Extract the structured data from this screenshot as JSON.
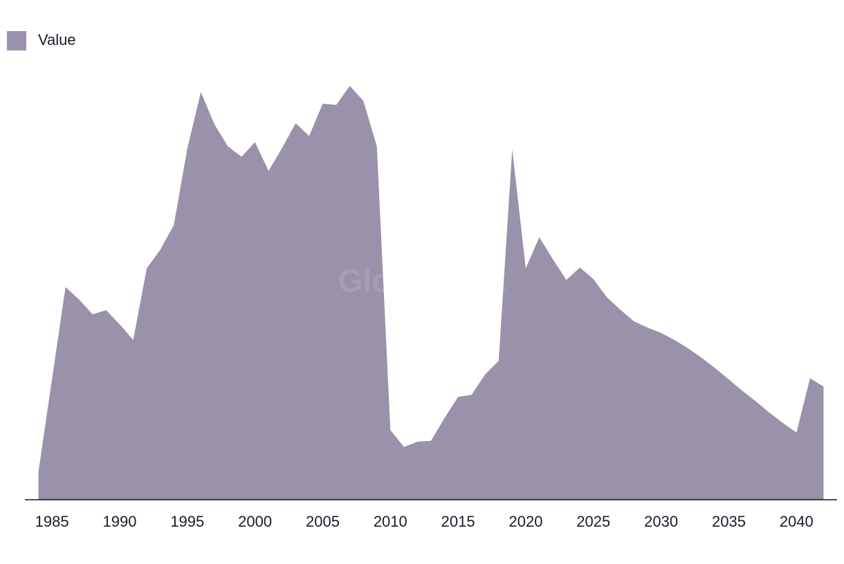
{
  "chart_data": {
    "type": "area",
    "watermark": "GlobalData",
    "legend": "top-left",
    "xlim": [
      1983,
      2043
    ],
    "xticks": [
      1985,
      1990,
      1995,
      2000,
      2005,
      2010,
      2015,
      2020,
      2025,
      2030,
      2035,
      2040
    ],
    "ylim": [
      0,
      100
    ],
    "x": [
      1984,
      1985,
      1986,
      1987,
      1988,
      1989,
      1990,
      1991,
      1992,
      1993,
      1994,
      1995,
      1996,
      1997,
      1998,
      1999,
      2000,
      2001,
      2002,
      2003,
      2004,
      2005,
      2006,
      2007,
      2008,
      2009,
      2010,
      2011,
      2012,
      2013,
      2014,
      2015,
      2016,
      2017,
      2018,
      2019,
      2020,
      2021,
      2022,
      2023,
      2024,
      2025,
      2026,
      2027,
      2028,
      2029,
      2030,
      2031,
      2032,
      2033,
      2034,
      2035,
      2036,
      2037,
      2038,
      2039,
      2040,
      2041,
      2042
    ],
    "series": [
      {
        "name": "Value",
        "color": "#9a91aa",
        "values": [
          6.8,
          29,
          51.3,
          48.3,
          44.7,
          45.7,
          42.3,
          38.5,
          55.8,
          60.3,
          66.2,
          84.7,
          98.3,
          90.5,
          85.2,
          82.7,
          86.2,
          79.3,
          84.8,
          90.8,
          87.7,
          95.5,
          95.2,
          99.8,
          96.2,
          85.2,
          16.8,
          12.7,
          14,
          14.2,
          19.7,
          24.8,
          25.3,
          30.2,
          33.5,
          84.5,
          55.8,
          63.3,
          58,
          53,
          56,
          53.2,
          48.8,
          45.8,
          43,
          41.5,
          40.2,
          38.5,
          36.5,
          34.2,
          31.7,
          29,
          26.3,
          23.7,
          21,
          18.5,
          16.2,
          29.3,
          27.3
        ]
      }
    ]
  }
}
